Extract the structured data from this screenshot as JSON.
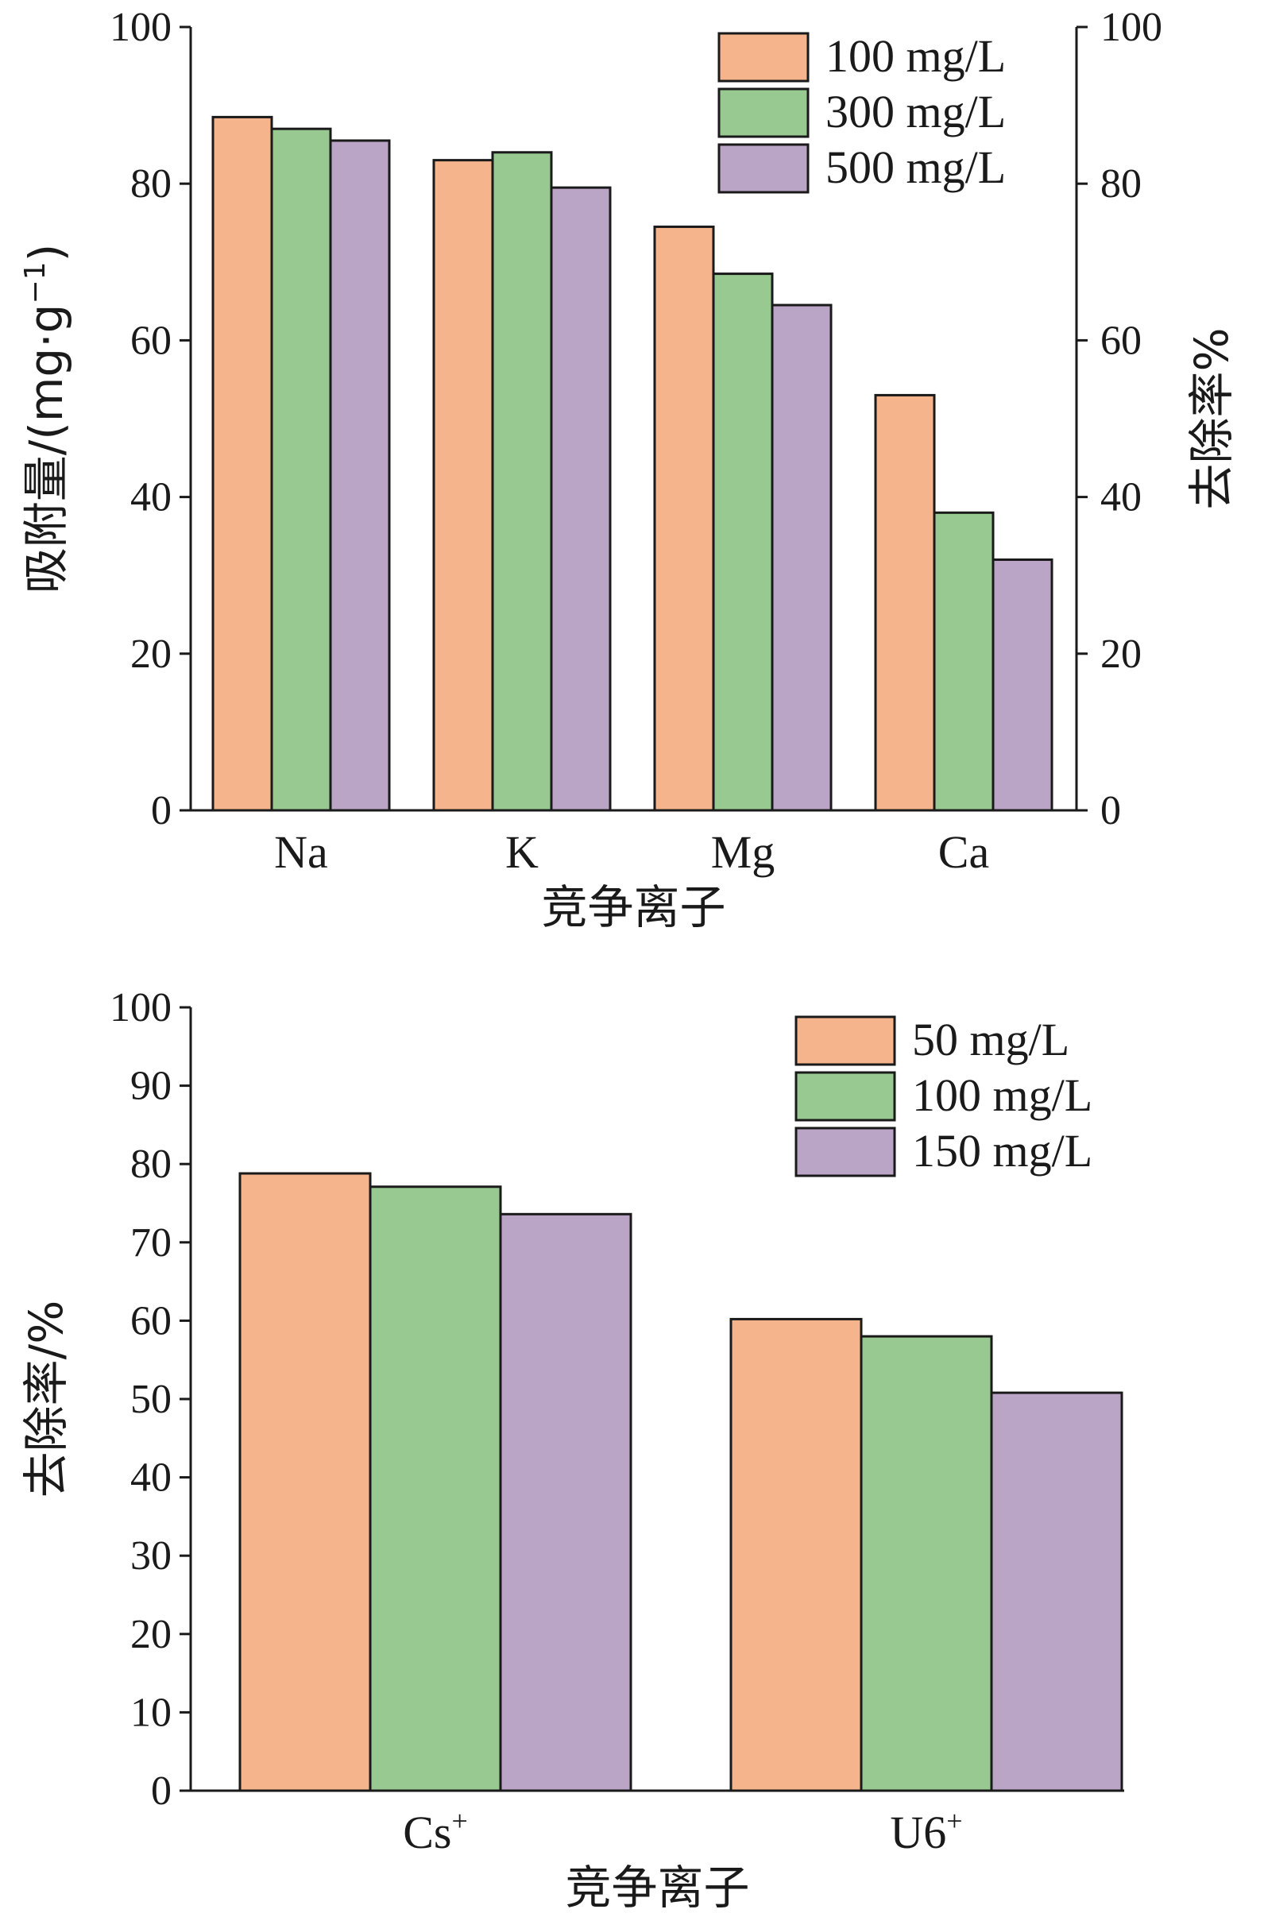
{
  "colors": {
    "orange": "#F5B48C",
    "green": "#97C990",
    "purple": "#BBA5C7",
    "axis": "#1a1a1a"
  },
  "chart_data": [
    {
      "type": "bar",
      "categories": [
        "Na",
        "K",
        "Mg",
        "Ca"
      ],
      "series": [
        {
          "name": "100 mg/L",
          "values": [
            88.5,
            83.0,
            74.5,
            53.0
          ]
        },
        {
          "name": "300 mg/L",
          "values": [
            87.0,
            84.0,
            68.5,
            38.0
          ]
        },
        {
          "name": "500 mg/L",
          "values": [
            85.5,
            79.5,
            64.5,
            32.0
          ]
        }
      ],
      "xlabel": "竞争离子",
      "ylabel": "吸附量/(mg·g",
      "ylabel_sup": "−1",
      "ylabel_end": ")",
      "y2label": "去除率%",
      "ylim": [
        0,
        100
      ],
      "y2lim": [
        0,
        100
      ],
      "yticks": [
        "0",
        "20",
        "40",
        "60",
        "80",
        "100"
      ],
      "y2ticks": [
        "0",
        "20",
        "40",
        "60",
        "80",
        "100"
      ],
      "legend_position": "top-right",
      "grid": false
    },
    {
      "type": "bar",
      "categories": [
        "Cs",
        "U6"
      ],
      "category_sups": [
        "+",
        "+"
      ],
      "series": [
        {
          "name": "50 mg/L",
          "values": [
            78.8,
            60.2
          ]
        },
        {
          "name": "100 mg/L",
          "values": [
            77.1,
            58.0
          ]
        },
        {
          "name": "150 mg/L",
          "values": [
            73.6,
            50.8
          ]
        }
      ],
      "xlabel": "竞争离子",
      "ylabel": "去除率/%",
      "ylim": [
        0,
        100
      ],
      "yticks": [
        "0",
        "10",
        "20",
        "30",
        "40",
        "50",
        "60",
        "70",
        "80",
        "90",
        "100"
      ],
      "legend_position": "top-right",
      "grid": false
    }
  ]
}
